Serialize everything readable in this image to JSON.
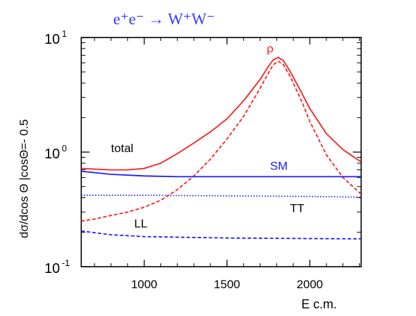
{
  "chart_data": {
    "type": "line",
    "title": "e⁺e⁻ → W⁺W⁻",
    "xlabel": "E c.m.",
    "ylabel": "dσ/dcos Θ |cosΘ=- 0.5",
    "x_scale": "linear",
    "y_scale": "log",
    "xlim": [
      620,
      2310
    ],
    "ylim": [
      0.1,
      10
    ],
    "x_ticks": [
      1000,
      1500,
      2000
    ],
    "x_tick_labels": [
      "1000",
      "1500",
      "2000"
    ],
    "y_ticks": [
      0.1,
      1,
      10
    ],
    "y_tick_labels": [
      {
        "base": "10",
        "exp": "-1"
      },
      {
        "base": "10",
        "exp": "0"
      },
      {
        "base": "10",
        "exp": "1"
      }
    ],
    "series": [
      {
        "name": "total",
        "color": "#ff1a1a",
        "style": "solid",
        "points": [
          [
            620,
            0.72
          ],
          [
            700,
            0.71
          ],
          [
            800,
            0.7
          ],
          [
            900,
            0.7
          ],
          [
            1000,
            0.72
          ],
          [
            1100,
            0.8
          ],
          [
            1200,
            0.97
          ],
          [
            1300,
            1.2
          ],
          [
            1400,
            1.5
          ],
          [
            1500,
            1.95
          ],
          [
            1600,
            2.8
          ],
          [
            1700,
            4.3
          ],
          [
            1750,
            5.6
          ],
          [
            1780,
            6.4
          ],
          [
            1810,
            6.7
          ],
          [
            1840,
            6.3
          ],
          [
            1880,
            5.1
          ],
          [
            1950,
            3.3
          ],
          [
            2000,
            2.4
          ],
          [
            2100,
            1.45
          ],
          [
            2200,
            1.05
          ],
          [
            2310,
            0.82
          ]
        ]
      },
      {
        "name": "LL",
        "color": "#ff1a1a",
        "style": "dashed",
        "points": [
          [
            620,
            0.25
          ],
          [
            700,
            0.26
          ],
          [
            800,
            0.28
          ],
          [
            900,
            0.3
          ],
          [
            1000,
            0.33
          ],
          [
            1100,
            0.38
          ],
          [
            1200,
            0.47
          ],
          [
            1300,
            0.62
          ],
          [
            1400,
            0.87
          ],
          [
            1500,
            1.3
          ],
          [
            1600,
            2.05
          ],
          [
            1700,
            3.6
          ],
          [
            1750,
            4.9
          ],
          [
            1780,
            5.8
          ],
          [
            1810,
            6.2
          ],
          [
            1840,
            5.8
          ],
          [
            1880,
            4.6
          ],
          [
            1950,
            2.8
          ],
          [
            2000,
            1.85
          ],
          [
            2100,
            0.95
          ],
          [
            2200,
            0.6
          ],
          [
            2310,
            0.43
          ]
        ]
      },
      {
        "name": "SM",
        "color": "#1a1aff",
        "style": "solid",
        "points": [
          [
            620,
            0.68
          ],
          [
            800,
            0.64
          ],
          [
            1000,
            0.62
          ],
          [
            1200,
            0.61
          ],
          [
            1500,
            0.61
          ],
          [
            2000,
            0.61
          ],
          [
            2310,
            0.61
          ]
        ]
      },
      {
        "name": "TT",
        "color": "#1a1aff",
        "style": "dotted",
        "points": [
          [
            620,
            0.42
          ],
          [
            1000,
            0.42
          ],
          [
            1500,
            0.415
          ],
          [
            2000,
            0.41
          ],
          [
            2310,
            0.405
          ]
        ]
      },
      {
        "name": "",
        "color": "#1a1aff",
        "style": "dashed",
        "points": [
          [
            620,
            0.205
          ],
          [
            800,
            0.19
          ],
          [
            1000,
            0.183
          ],
          [
            1500,
            0.178
          ],
          [
            2000,
            0.176
          ],
          [
            2310,
            0.175
          ]
        ]
      }
    ],
    "annotations": [
      {
        "text": "total",
        "color": "#000000",
        "x": 800,
        "y": 1.0
      },
      {
        "text": "SM",
        "color": "#1a1aff",
        "x": 1760,
        "y": 0.7
      },
      {
        "text": "TT",
        "color": "#000000",
        "x": 1880,
        "y": 0.3
      },
      {
        "text": "LL",
        "color": "#000000",
        "x": 940,
        "y": 0.22
      },
      {
        "text": "ρ",
        "color": "#ff1a1a",
        "x": 1740,
        "y": 7.4
      }
    ]
  }
}
